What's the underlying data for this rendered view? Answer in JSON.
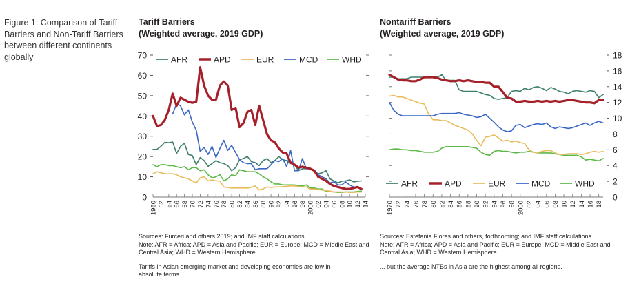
{
  "figure_caption": "Figure 1: Comparison of Tariff Barriers and Non-Tariff Barriers between different continents globally",
  "colors": {
    "AFR": "#3d7f6a",
    "APD": "#a6202a",
    "EUR": "#e9bc5a",
    "MCD": "#3a67c6",
    "WHD": "#5cb847",
    "axis": "#666666"
  },
  "chart_data": [
    {
      "id": "tariff",
      "type": "line",
      "title": "Tariff Barriers",
      "subtitle": "(Weighted average, 2019 GDP)",
      "xlabel": "",
      "ylabel": "",
      "y_axis_side": "left",
      "ylim": [
        0,
        70
      ],
      "yticks": [
        0,
        10,
        20,
        30,
        40,
        50,
        60,
        70
      ],
      "ytick_labels": [
        "0",
        "10",
        "20",
        "30",
        "40",
        "50",
        "60",
        "70"
      ],
      "xlim": [
        1960,
        2014
      ],
      "xtick_labels": [
        "1960",
        "62",
        "64",
        "66",
        "68",
        "70",
        "72",
        "74",
        "76",
        "78",
        "80",
        "82",
        "84",
        "86",
        "88",
        "90",
        "92",
        "94",
        "96",
        "98",
        "2000",
        "02",
        "04",
        "06",
        "08",
        "10",
        "12",
        "14"
      ],
      "legend": [
        "AFR",
        "APD",
        "EUR",
        "MCD",
        "WHD"
      ],
      "legend_position": "top",
      "grid": false,
      "series": [
        {
          "name": "AFR",
          "x_start": 1960,
          "values": [
            23.5,
            23.5,
            25,
            27,
            26.8,
            27.2,
            21.5,
            25,
            26.5,
            21,
            20.5,
            16,
            19.5,
            18,
            15.2,
            16.5,
            18,
            17,
            16.5,
            15.5,
            13,
            14.5,
            18.5,
            19,
            20,
            17.5,
            17,
            15.5,
            18,
            19,
            17,
            18,
            20,
            18.5,
            18,
            16.5,
            16,
            13,
            14,
            14,
            14,
            13,
            11.5,
            12,
            13,
            9,
            8,
            7,
            7.8,
            8,
            8.5,
            7.5,
            7.8,
            8
          ]
        },
        {
          "name": "APD",
          "x_start": 1960,
          "values": [
            40,
            35,
            35.5,
            38,
            43,
            51,
            45,
            49,
            48,
            47,
            46.5,
            47,
            64,
            55,
            50,
            48,
            48,
            55,
            57,
            55,
            43,
            44,
            34.5,
            36.5,
            42,
            43,
            35.5,
            45,
            38,
            31,
            28,
            27,
            24,
            22,
            21.5,
            17,
            16,
            14.5,
            15,
            14.5,
            14,
            13,
            10,
            9,
            8,
            6.5,
            5.5,
            5,
            4.5,
            4,
            4,
            4.5,
            5,
            4
          ]
        },
        {
          "name": "EUR",
          "x_start": 1960,
          "values": [
            11.5,
            12.5,
            12,
            11.5,
            11.5,
            11.5,
            11,
            10,
            9.5,
            9,
            8,
            7,
            9.5,
            10,
            8,
            8.5,
            8,
            8,
            5,
            4.8,
            4.5,
            4.5,
            4.5,
            4.5,
            4.5,
            4.8,
            5.5,
            3.5,
            4,
            5,
            4.8,
            5,
            5,
            5.2,
            5.3,
            5.5,
            5.5,
            5.2,
            5,
            5,
            4,
            4,
            3.8,
            3.5,
            3.2,
            3,
            2.5,
            2.5,
            2.5,
            2.5,
            2.3,
            2.3,
            2.5,
            2.5
          ]
        },
        {
          "name": "MCD",
          "x_start": 1965,
          "values": [
            41,
            46,
            45,
            40.5,
            43,
            37,
            33,
            22.5,
            24.5,
            21,
            25,
            19.5,
            24,
            28,
            23,
            25.5,
            22,
            18.5,
            17,
            16.5,
            16.5,
            13.5,
            14,
            14,
            14,
            16,
            18,
            17.5,
            19,
            15,
            23,
            13,
            13,
            19,
            14,
            14,
            13.5,
            11,
            10,
            9,
            7,
            7.5,
            6,
            6,
            7.5,
            6,
            5,
            5
          ]
        },
        {
          "name": "WHD",
          "x_start": 1960,
          "values": [
            16,
            15,
            16,
            16,
            15.5,
            15.5,
            15,
            14.5,
            15,
            13.5,
            14.5,
            14.5,
            13,
            13.5,
            11,
            9.5,
            10,
            11,
            8,
            9,
            11,
            10.5,
            13.5,
            13,
            12.5,
            12.5,
            12.5,
            11.5,
            10,
            9,
            7.5,
            6.5,
            6.5,
            6,
            6,
            6,
            6,
            5.5,
            5.5,
            6,
            4.5,
            4.5,
            4,
            4,
            2.8,
            2.8,
            2.5,
            2.3,
            2.3,
            2.5,
            2.5,
            2.5,
            2.8,
            3
          ]
        }
      ],
      "source_note": "Sources: Furceri and others 2019; and IMF staff calculations.",
      "note": "Note: AFR = Africa; APD = Asia and Pacific; EUR = Europe; MCD = Middle East and Central Asia; WHD = Western Hemisphere.",
      "takeaway": "Tariffs in Asian emerging market and developing economies are low in absolute terms ..."
    },
    {
      "id": "nontariff",
      "type": "line",
      "title": "Nontariff Barriers",
      "subtitle": "(Weighted average, 2019 GDP)",
      "xlabel": "",
      "ylabel": "",
      "y_axis_side": "right",
      "ylim": [
        0,
        18
      ],
      "yticks": [
        0,
        2,
        4,
        6,
        8,
        10,
        12,
        14,
        16,
        18
      ],
      "ytick_labels": [
        "0",
        "2",
        "4",
        "6",
        "8",
        "10",
        "12",
        "14",
        "16",
        "18"
      ],
      "xlim": [
        1970,
        2019
      ],
      "xtick_labels": [
        "1970",
        "72",
        "74",
        "76",
        "78",
        "80",
        "82",
        "84",
        "86",
        "88",
        "90",
        "92",
        "94",
        "96",
        "98",
        "2000",
        "02",
        "04",
        "06",
        "08",
        "10",
        "12",
        "14",
        "16",
        "18"
      ],
      "legend": [
        "AFR",
        "APD",
        "EUR",
        "MCD",
        "WHD"
      ],
      "legend_position": "bottom",
      "grid": false,
      "series": [
        {
          "name": "AFR",
          "x_start": 1970,
          "values": [
            15.2,
            15.2,
            15,
            15,
            15,
            15.2,
            15.2,
            15.2,
            15.2,
            15.2,
            15.2,
            15.2,
            15.5,
            14.8,
            14.8,
            14.8,
            13.6,
            13.4,
            13.4,
            13.4,
            13.4,
            13.2,
            13,
            12.9,
            12.5,
            12.4,
            12.5,
            12.6,
            13.4,
            13.5,
            13.4,
            13.8,
            13.6,
            13.9,
            14,
            13.8,
            13.5,
            13.9,
            13.7,
            13.4,
            13.3,
            13.1,
            13.4,
            13.5,
            13.4,
            13.3,
            13.5,
            13.4,
            12.6,
            13
          ]
        },
        {
          "name": "APD",
          "x_start": 1970,
          "values": [
            15.5,
            15.2,
            14.9,
            14.8,
            14.8,
            14.7,
            14.7,
            14.9,
            15.2,
            15.2,
            15.2,
            15.1,
            14.9,
            14.8,
            14.7,
            14.7,
            14.8,
            14.7,
            14.8,
            14.7,
            14.6,
            14.6,
            14.5,
            14.5,
            14,
            14,
            13.3,
            12.6,
            12.5,
            12.1,
            12.1,
            12.2,
            12.1,
            12.1,
            12.2,
            12.1,
            12.2,
            12.1,
            12.2,
            12.1,
            12.2,
            12.3,
            12.3,
            12.2,
            12.1,
            12,
            12,
            11.9,
            12.3,
            12.3
          ]
        },
        {
          "name": "EUR",
          "x_start": 1970,
          "values": [
            12.8,
            12.9,
            12.7,
            12.7,
            12.5,
            12.3,
            12.1,
            11.9,
            11.8,
            10.5,
            9.8,
            9.8,
            9.7,
            9.7,
            9.4,
            9.1,
            8.9,
            8.7,
            8.5,
            8,
            7.2,
            6.5,
            7.6,
            7.7,
            7.9,
            7.5,
            7.1,
            7.2,
            7,
            7.1,
            6.9,
            6.8,
            6,
            5.7,
            5.6,
            5.8,
            5.9,
            5.9,
            5.6,
            5.4,
            5.4,
            5.5,
            5.5,
            5.5,
            5.4,
            5.5,
            5.7,
            5.8,
            5.7,
            5.8
          ]
        },
        {
          "name": "MCD",
          "x_start": 1970,
          "values": [
            12,
            11,
            10.5,
            10.3,
            10.3,
            10.3,
            10.3,
            10.3,
            10.3,
            10.3,
            10.3,
            10.5,
            10.6,
            10.6,
            10.6,
            10.6,
            10.7,
            10.5,
            10.4,
            10.3,
            10.1,
            10.2,
            10.5,
            10,
            9.5,
            8.9,
            8.5,
            8.3,
            8.4,
            9.1,
            9.2,
            8.8,
            9,
            9.2,
            9.3,
            9.2,
            9.4,
            8.9,
            8.7,
            8.9,
            8.8,
            8.7,
            8.8,
            9,
            9.2,
            9.4,
            9.1,
            9.4,
            9.6,
            9.4
          ]
        },
        {
          "name": "WHD",
          "x_start": 1970,
          "values": [
            6,
            6.1,
            6.1,
            6,
            6,
            5.9,
            5.9,
            5.8,
            5.7,
            5.7,
            5.7,
            5.8,
            6.2,
            6.4,
            6.4,
            6.4,
            6.4,
            6.4,
            6.4,
            6.3,
            6.2,
            5.7,
            5.4,
            5.3,
            5.8,
            5.9,
            5.8,
            5.8,
            5.7,
            5.6,
            5.7,
            5.7,
            5.8,
            5.7,
            5.6,
            5.6,
            5.6,
            5.6,
            5.5,
            5.4,
            5.3,
            5.3,
            5.3,
            5.3,
            5.1,
            4.7,
            4.8,
            4.7,
            4.6,
            4.9
          ]
        }
      ],
      "source_note": "Sources: Estefania Flores and others, forthcoming; and IMF staff calculations.",
      "note": "Note: AFR = Africa; APD = Asia and Pacific; EUR = Europe; MCD = Middle East and Central Asia; WHD = Western Hemisphere.",
      "takeaway": "... but the average NTBs in Asia are the highest among all regions."
    }
  ]
}
